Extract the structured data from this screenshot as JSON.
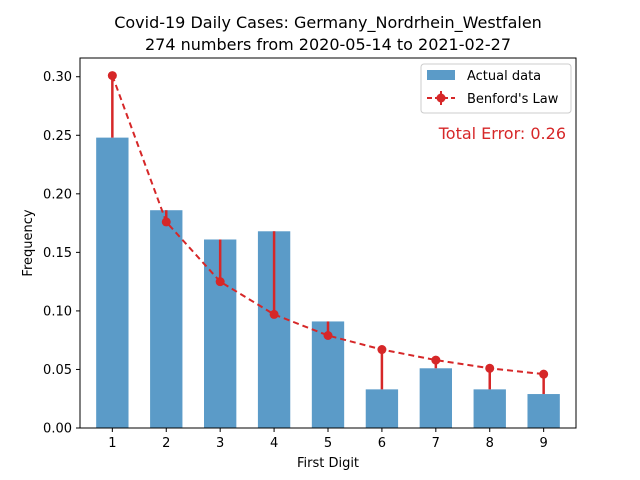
{
  "chart_data": {
    "type": "bar",
    "title": "Covid-19 Daily Cases: Germany_Nordrhein_Westfalen",
    "subtitle": "274 numbers from 2020-05-14 to 2021-02-27",
    "xlabel": "First Digit",
    "ylabel": "Frequency",
    "categories": [
      "1",
      "2",
      "3",
      "4",
      "5",
      "6",
      "7",
      "8",
      "9"
    ],
    "x": [
      1,
      2,
      3,
      4,
      5,
      6,
      7,
      8,
      9
    ],
    "ylim": [
      0,
      0.3
    ],
    "yticks": [
      "0.00",
      "0.05",
      "0.10",
      "0.15",
      "0.20",
      "0.25",
      "0.30"
    ],
    "series": [
      {
        "name": "Actual data",
        "kind": "bar",
        "color": "#5b9bc8",
        "values": [
          0.248,
          0.186,
          0.161,
          0.168,
          0.091,
          0.033,
          0.051,
          0.033,
          0.029
        ]
      },
      {
        "name": "Benford's Law",
        "kind": "line-errorbar",
        "color": "#d62728",
        "values": [
          0.301,
          0.176,
          0.125,
          0.097,
          0.079,
          0.067,
          0.058,
          0.051,
          0.046
        ]
      }
    ],
    "legend": {
      "position": "top-right",
      "items": [
        "Actual data",
        "Benford's Law"
      ]
    },
    "annotation": {
      "text": "Total Error: 0.26",
      "color": "#d62728"
    },
    "grid": false
  }
}
